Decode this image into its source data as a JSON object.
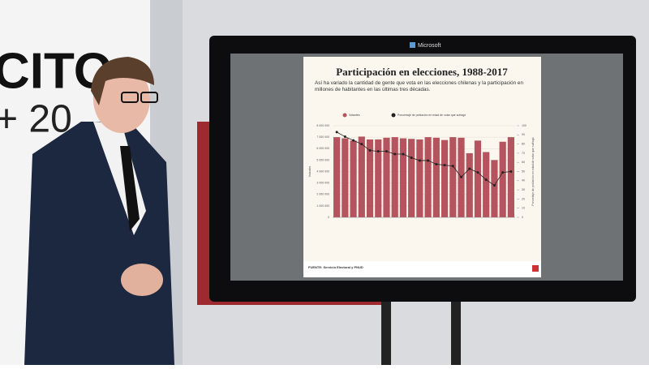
{
  "sign": {
    "line1": "CITO",
    "line2": "+ 20"
  },
  "screen": {
    "brand": "Microsoft"
  },
  "chart_data": {
    "type": "bar",
    "title": "Participación en elecciones, 1988-2017",
    "subtitle": "Así ha variado la cantidad de gente que vota en las elecciones chilenas y la participación en millones de habitantes en las últimas tres décadas.",
    "ylabel": "Votantes",
    "y2label": "Porcentaje de población en edad de votar que sufragó",
    "source": "FUENTE: Servicio Electoral y PNUD",
    "categories": [
      null,
      null,
      null,
      null,
      null,
      null,
      null,
      null,
      null,
      null,
      null,
      null,
      null,
      null,
      null,
      null,
      null,
      null,
      null,
      null,
      null,
      null
    ],
    "series": [
      {
        "name": "Votantes",
        "color": "#b5545f",
        "values": [
          7000000,
          6900000,
          6700000,
          7050000,
          6800000,
          6800000,
          6950000,
          7000000,
          6900000,
          6850000,
          6800000,
          7000000,
          6950000,
          6750000,
          7000000,
          6950000,
          5600000,
          6700000,
          5700000,
          5000000,
          6600000,
          7000000
        ]
      },
      {
        "name": "Porcentaje de población en edad de votar que sufragó",
        "color": "#222222",
        "axis": "y2",
        "values": [
          93,
          88,
          84,
          80,
          73,
          72,
          72,
          69,
          69,
          65,
          62,
          62,
          58,
          57,
          56,
          44,
          53,
          49,
          41,
          35,
          49,
          50
        ]
      }
    ],
    "ylim": [
      0,
      8000000
    ],
    "yticks": [
      {
        "value": 0,
        "label": "0"
      },
      {
        "value": 1000000,
        "label": "1 000 000"
      },
      {
        "value": 2000000,
        "label": "2 000 000"
      },
      {
        "value": 3000000,
        "label": "3 000 000"
      },
      {
        "value": 4000000,
        "label": "4 000 000"
      },
      {
        "value": 5000000,
        "label": "5 000 000"
      },
      {
        "value": 6000000,
        "label": "6 000 000"
      },
      {
        "value": 7000000,
        "label": "7 000 000"
      },
      {
        "value": 8000000,
        "label": "8 000 000"
      }
    ],
    "y2lim": [
      0,
      100
    ],
    "y2ticks": [
      0,
      10,
      20,
      30,
      40,
      50,
      60,
      70,
      80,
      90,
      100
    ],
    "grid": true
  }
}
